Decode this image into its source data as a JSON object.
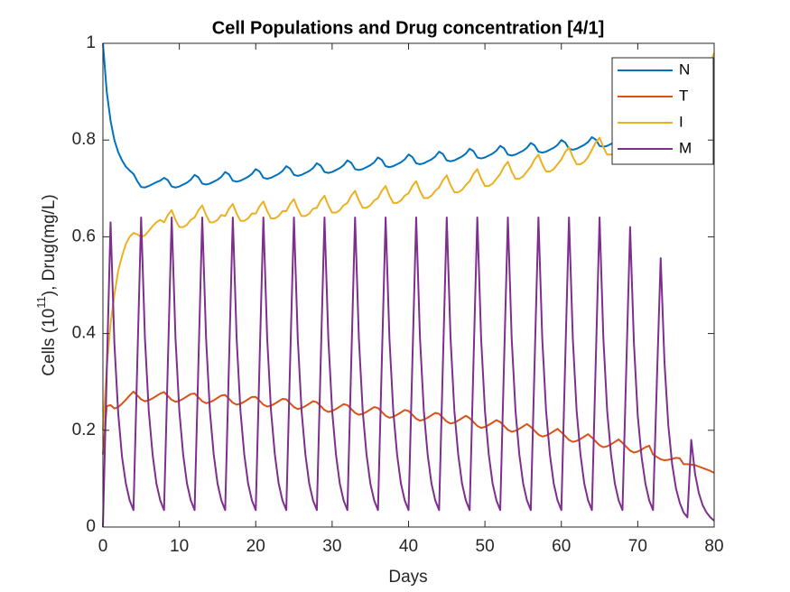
{
  "chart_data": {
    "type": "line",
    "title": "Cell Populations and Drug concentration [4/1]",
    "xlabel": "Days",
    "ylabel": {
      "text_before": "Cells (10",
      "superscript": "11",
      "text_after": "), Drug(mg/L)"
    },
    "xlim": [
      0,
      80
    ],
    "xticks": [
      0,
      10,
      20,
      30,
      40,
      50,
      60,
      70,
      80
    ],
    "ylim": [
      0,
      1
    ],
    "yticks": [
      0,
      0.2,
      0.4,
      0.6,
      0.8,
      1
    ],
    "legend": "upper right",
    "x": [
      0,
      0.5,
      1,
      1.5,
      2,
      2.5,
      3,
      3.5,
      4,
      4.5,
      5,
      5.5,
      6,
      6.5,
      7,
      7.5,
      8,
      8.5,
      9,
      9.5,
      10,
      10.5,
      11,
      11.5,
      12,
      12.5,
      13,
      13.5,
      14,
      14.5,
      15,
      15.5,
      16,
      16.5,
      17,
      17.5,
      18,
      18.5,
      19,
      19.5,
      20,
      20.5,
      21,
      21.5,
      22,
      22.5,
      23,
      23.5,
      24,
      24.5,
      25,
      25.5,
      26,
      26.5,
      27,
      27.5,
      28,
      28.5,
      29,
      29.5,
      30,
      30.5,
      31,
      31.5,
      32,
      32.5,
      33,
      33.5,
      34,
      34.5,
      35,
      35.5,
      36,
      36.5,
      37,
      37.5,
      38,
      38.5,
      39,
      39.5,
      40,
      40.5,
      41,
      41.5,
      42,
      42.5,
      43,
      43.5,
      44,
      44.5,
      45,
      45.5,
      46,
      46.5,
      47,
      47.5,
      48,
      48.5,
      49,
      49.5,
      50,
      50.5,
      51,
      51.5,
      52,
      52.5,
      53,
      53.5,
      54,
      54.5,
      55,
      55.5,
      56,
      56.5,
      57,
      57.5,
      58,
      58.5,
      59,
      59.5,
      60,
      60.5,
      61,
      61.5,
      62,
      62.5,
      63,
      63.5,
      64,
      64.5,
      65,
      65.5,
      66,
      66.5,
      67,
      67.5,
      68,
      68.5,
      69,
      69.5,
      70,
      70.5,
      71,
      71.5,
      72,
      72.5,
      73,
      73.5,
      74,
      74.5,
      75,
      75.5,
      76,
      76.5,
      77,
      77.5,
      78,
      78.5,
      79,
      79.5,
      80
    ],
    "series": [
      {
        "name": "N",
        "color": "#0072BD",
        "values": [
          1.0,
          0.9,
          0.84,
          0.8,
          0.775,
          0.758,
          0.745,
          0.737,
          0.73,
          0.715,
          0.703,
          0.702,
          0.705,
          0.709,
          0.713,
          0.716,
          0.722,
          0.717,
          0.704,
          0.702,
          0.704,
          0.708,
          0.712,
          0.718,
          0.728,
          0.723,
          0.71,
          0.708,
          0.71,
          0.714,
          0.718,
          0.724,
          0.734,
          0.729,
          0.716,
          0.714,
          0.716,
          0.72,
          0.724,
          0.73,
          0.74,
          0.735,
          0.722,
          0.72,
          0.722,
          0.726,
          0.73,
          0.736,
          0.746,
          0.741,
          0.728,
          0.726,
          0.728,
          0.732,
          0.736,
          0.742,
          0.752,
          0.747,
          0.734,
          0.732,
          0.734,
          0.738,
          0.742,
          0.748,
          0.758,
          0.753,
          0.74,
          0.738,
          0.74,
          0.744,
          0.748,
          0.754,
          0.764,
          0.759,
          0.746,
          0.744,
          0.746,
          0.75,
          0.754,
          0.76,
          0.77,
          0.765,
          0.752,
          0.75,
          0.752,
          0.756,
          0.76,
          0.766,
          0.776,
          0.771,
          0.758,
          0.756,
          0.758,
          0.762,
          0.766,
          0.772,
          0.782,
          0.777,
          0.764,
          0.762,
          0.764,
          0.768,
          0.772,
          0.778,
          0.788,
          0.783,
          0.77,
          0.768,
          0.77,
          0.774,
          0.778,
          0.784,
          0.794,
          0.789,
          0.776,
          0.774,
          0.776,
          0.78,
          0.784,
          0.79,
          0.8,
          0.795,
          0.782,
          0.78,
          0.782,
          0.786,
          0.79,
          0.796,
          0.806,
          0.801,
          0.788,
          0.786,
          0.788,
          0.792,
          0.796,
          0.802,
          0.81,
          0.808,
          0.802,
          0.8,
          0.803,
          0.808,
          0.814,
          0.82,
          0.826,
          0.828,
          0.826,
          0.83,
          0.836,
          0.842,
          0.847,
          0.852,
          0.857,
          0.86,
          0.862,
          0.866,
          0.87,
          0.873,
          0.876,
          0.878,
          0.88
        ]
      },
      {
        "name": "T",
        "color": "#D95319",
        "values": [
          0.15,
          0.25,
          0.252,
          0.245,
          0.248,
          0.255,
          0.263,
          0.272,
          0.28,
          0.272,
          0.264,
          0.26,
          0.262,
          0.266,
          0.271,
          0.276,
          0.279,
          0.271,
          0.263,
          0.259,
          0.261,
          0.265,
          0.27,
          0.275,
          0.276,
          0.268,
          0.26,
          0.256,
          0.258,
          0.262,
          0.267,
          0.272,
          0.273,
          0.265,
          0.257,
          0.253,
          0.255,
          0.259,
          0.264,
          0.269,
          0.269,
          0.261,
          0.253,
          0.249,
          0.251,
          0.255,
          0.26,
          0.265,
          0.264,
          0.256,
          0.248,
          0.244,
          0.246,
          0.25,
          0.255,
          0.26,
          0.258,
          0.25,
          0.242,
          0.238,
          0.24,
          0.244,
          0.249,
          0.254,
          0.252,
          0.244,
          0.236,
          0.232,
          0.234,
          0.238,
          0.243,
          0.248,
          0.246,
          0.238,
          0.23,
          0.226,
          0.228,
          0.232,
          0.237,
          0.242,
          0.24,
          0.232,
          0.224,
          0.22,
          0.222,
          0.226,
          0.231,
          0.236,
          0.234,
          0.226,
          0.218,
          0.214,
          0.216,
          0.22,
          0.225,
          0.23,
          0.225,
          0.217,
          0.209,
          0.205,
          0.207,
          0.211,
          0.216,
          0.221,
          0.217,
          0.209,
          0.201,
          0.197,
          0.199,
          0.203,
          0.208,
          0.213,
          0.207,
          0.199,
          0.191,
          0.187,
          0.189,
          0.193,
          0.198,
          0.203,
          0.196,
          0.188,
          0.18,
          0.176,
          0.178,
          0.182,
          0.187,
          0.192,
          0.185,
          0.177,
          0.169,
          0.165,
          0.167,
          0.171,
          0.176,
          0.181,
          0.174,
          0.166,
          0.158,
          0.154,
          0.156,
          0.16,
          0.165,
          0.168,
          0.15,
          0.145,
          0.14,
          0.138,
          0.139,
          0.141,
          0.143,
          0.142,
          0.13,
          0.13,
          0.129,
          0.128,
          0.125,
          0.122,
          0.119,
          0.116,
          0.112
        ]
      },
      {
        "name": "I",
        "color": "#EDB120",
        "values": [
          0.2,
          0.33,
          0.42,
          0.48,
          0.53,
          0.56,
          0.585,
          0.6,
          0.608,
          0.605,
          0.6,
          0.603,
          0.612,
          0.622,
          0.63,
          0.635,
          0.63,
          0.645,
          0.655,
          0.635,
          0.62,
          0.62,
          0.625,
          0.635,
          0.64,
          0.655,
          0.665,
          0.645,
          0.63,
          0.63,
          0.635,
          0.645,
          0.643,
          0.658,
          0.668,
          0.648,
          0.633,
          0.633,
          0.638,
          0.648,
          0.648,
          0.663,
          0.673,
          0.653,
          0.638,
          0.638,
          0.643,
          0.653,
          0.653,
          0.668,
          0.678,
          0.658,
          0.643,
          0.643,
          0.648,
          0.658,
          0.66,
          0.675,
          0.685,
          0.665,
          0.65,
          0.65,
          0.655,
          0.665,
          0.67,
          0.685,
          0.695,
          0.675,
          0.66,
          0.66,
          0.665,
          0.675,
          0.68,
          0.695,
          0.705,
          0.685,
          0.67,
          0.67,
          0.675,
          0.685,
          0.69,
          0.705,
          0.715,
          0.695,
          0.68,
          0.68,
          0.685,
          0.695,
          0.702,
          0.717,
          0.727,
          0.707,
          0.692,
          0.692,
          0.697,
          0.707,
          0.715,
          0.73,
          0.74,
          0.72,
          0.705,
          0.705,
          0.71,
          0.72,
          0.73,
          0.745,
          0.755,
          0.735,
          0.72,
          0.72,
          0.725,
          0.735,
          0.745,
          0.76,
          0.77,
          0.75,
          0.735,
          0.735,
          0.74,
          0.75,
          0.76,
          0.775,
          0.785,
          0.765,
          0.75,
          0.75,
          0.755,
          0.765,
          0.78,
          0.795,
          0.805,
          0.785,
          0.77,
          0.77,
          0.775,
          0.785,
          0.79,
          0.803,
          0.812,
          0.795,
          0.785,
          0.79,
          0.8,
          0.812,
          0.825,
          0.838,
          0.848,
          0.855,
          0.862,
          0.87,
          0.878,
          0.887,
          0.896,
          0.905,
          0.913,
          0.922,
          0.931,
          0.94,
          0.95,
          0.96,
          0.98
        ]
      },
      {
        "name": "M",
        "color": "#7E2F8E",
        "values": [
          0,
          0.32,
          0.63,
          0.38,
          0.235,
          0.145,
          0.09,
          0.055,
          0.035,
          0.34,
          0.64,
          0.39,
          0.24,
          0.15,
          0.09,
          0.055,
          0.035,
          0.34,
          0.64,
          0.39,
          0.24,
          0.15,
          0.09,
          0.055,
          0.035,
          0.34,
          0.64,
          0.39,
          0.24,
          0.15,
          0.09,
          0.055,
          0.035,
          0.34,
          0.64,
          0.39,
          0.24,
          0.15,
          0.09,
          0.055,
          0.035,
          0.34,
          0.64,
          0.39,
          0.24,
          0.15,
          0.09,
          0.055,
          0.035,
          0.34,
          0.64,
          0.39,
          0.24,
          0.15,
          0.09,
          0.055,
          0.035,
          0.34,
          0.64,
          0.39,
          0.24,
          0.15,
          0.09,
          0.055,
          0.035,
          0.34,
          0.64,
          0.39,
          0.24,
          0.15,
          0.09,
          0.055,
          0.035,
          0.34,
          0.64,
          0.39,
          0.24,
          0.15,
          0.09,
          0.055,
          0.035,
          0.34,
          0.64,
          0.39,
          0.24,
          0.15,
          0.09,
          0.055,
          0.035,
          0.34,
          0.64,
          0.39,
          0.24,
          0.15,
          0.09,
          0.055,
          0.035,
          0.34,
          0.64,
          0.39,
          0.24,
          0.15,
          0.09,
          0.055,
          0.035,
          0.34,
          0.64,
          0.39,
          0.24,
          0.15,
          0.09,
          0.055,
          0.035,
          0.34,
          0.64,
          0.39,
          0.24,
          0.15,
          0.09,
          0.055,
          0.035,
          0.34,
          0.64,
          0.39,
          0.24,
          0.15,
          0.09,
          0.055,
          0.035,
          0.34,
          0.64,
          0.39,
          0.24,
          0.15,
          0.09,
          0.055,
          0.035,
          0.33,
          0.62,
          0.38,
          0.23,
          0.145,
          0.09,
          0.055,
          0.035,
          0.3,
          0.556,
          0.34,
          0.21,
          0.13,
          0.08,
          0.05,
          0.03,
          0.02,
          0.18,
          0.11,
          0.07,
          0.045,
          0.03,
          0.02,
          0.013
        ]
      }
    ]
  }
}
